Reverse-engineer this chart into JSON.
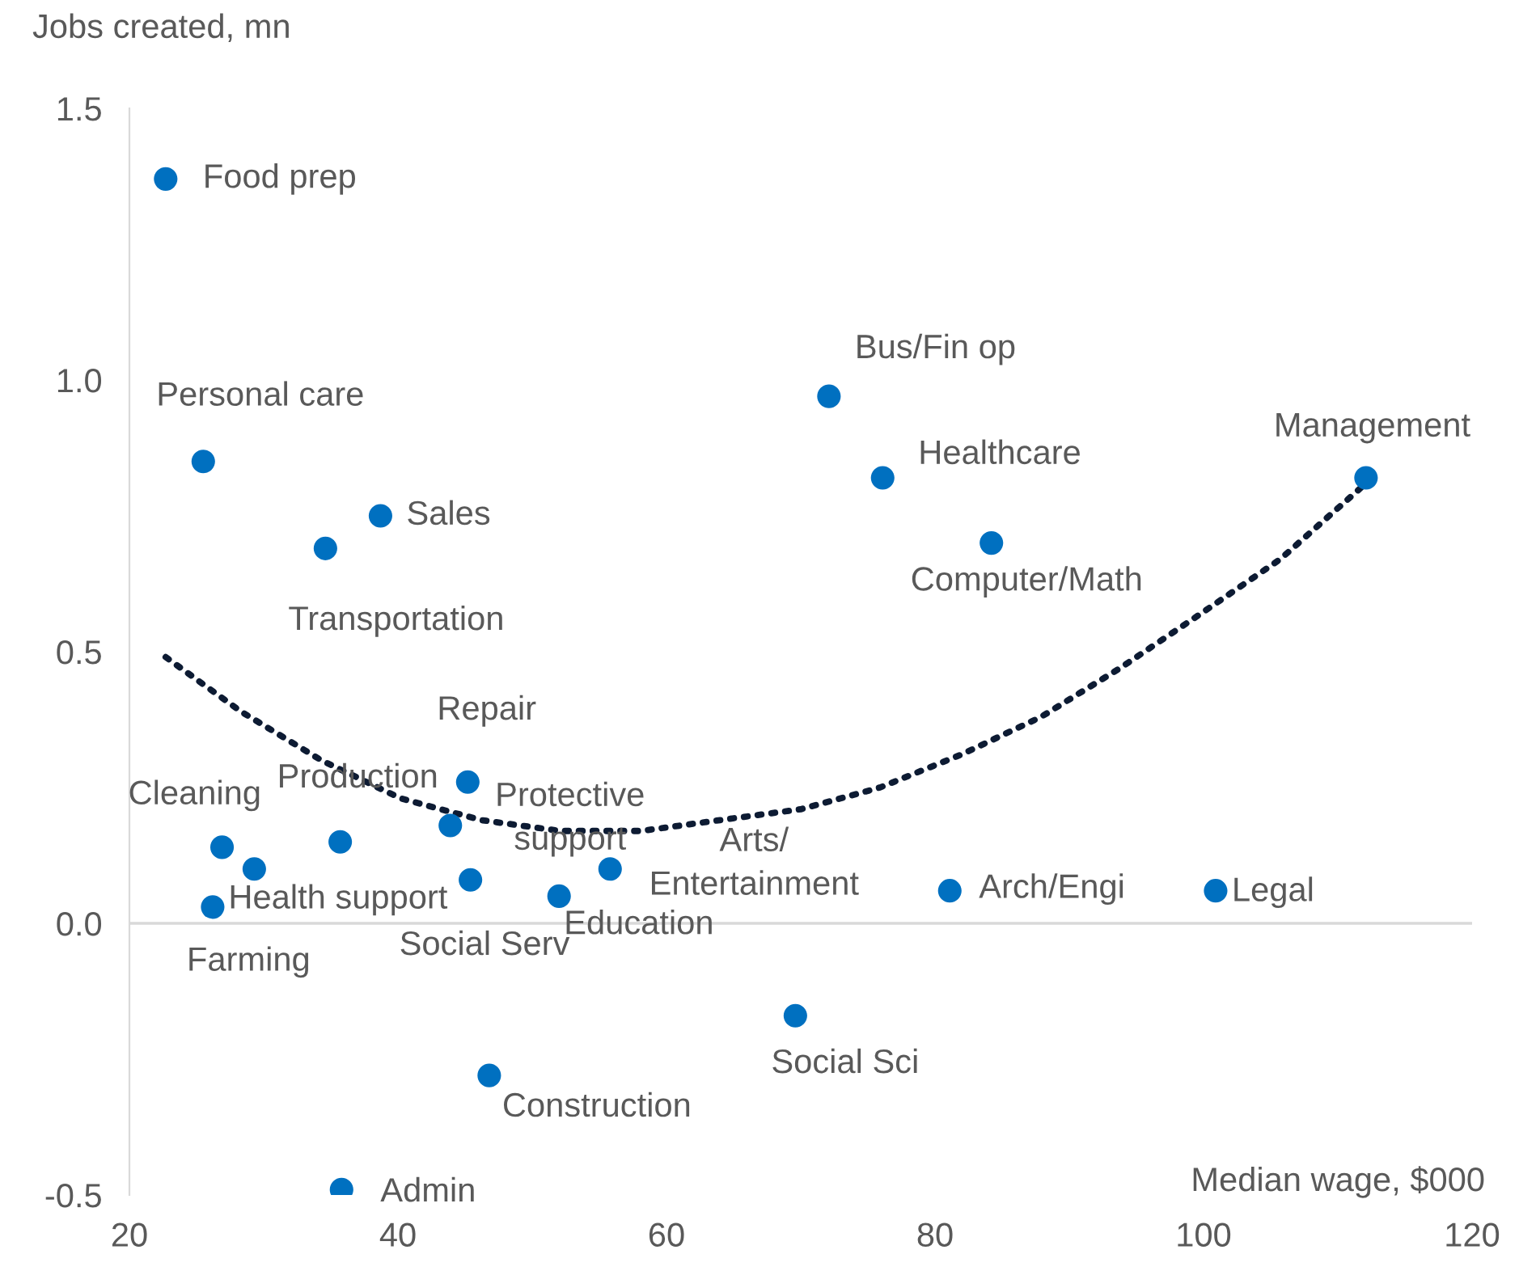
{
  "chart_data": {
    "type": "scatter",
    "xlabel": "Median wage, $000",
    "ylabel": "Jobs created, mn",
    "xlim": [
      20,
      120
    ],
    "xticks": [
      20,
      40,
      60,
      80,
      100,
      120
    ],
    "ylim": [
      -0.5,
      1.5
    ],
    "yticks": [
      -0.5,
      {
        "value": 0,
        "label": "0.0"
      },
      0.5,
      {
        "value": 1,
        "label": "1.0"
      },
      1.5
    ],
    "grid": false,
    "legend": false,
    "ref_lines": [
      {
        "axis": "y",
        "value": 0,
        "color": "#d9d9d9",
        "line_style": "solid"
      }
    ],
    "series": [
      {
        "type": "line",
        "color": "#0d1b33",
        "line_style": "dotted",
        "marker": "none",
        "x": [
          22.7,
          28.3,
          34.3,
          40.2,
          46.2,
          52.1,
          58.1,
          64.0,
          70.0,
          75.9,
          81.9,
          87.9,
          93.8,
          99.8,
          105.7,
          112.1
        ],
        "values": [
          0.49,
          0.39,
          0.3,
          0.23,
          0.19,
          0.17,
          0.17,
          0.19,
          0.21,
          0.25,
          0.31,
          0.38,
          0.47,
          0.57,
          0.67,
          0.81
        ]
      },
      {
        "color": "#0070c0",
        "marker": "circle",
        "x": [
          22.7,
          25.5,
          38.7,
          34.6,
          72.1,
          76.1,
          84.2,
          112.1,
          45.2,
          43.9,
          26.9,
          29.3,
          35.7,
          45.4,
          52.0,
          55.8,
          26.2,
          81.1,
          100.9,
          69.6,
          46.8,
          35.8
        ],
        "values": [
          1.37,
          0.85,
          0.75,
          0.69,
          0.97,
          0.82,
          0.7,
          0.82,
          0.26,
          0.18,
          0.14,
          0.1,
          0.15,
          0.08,
          0.05,
          0.1,
          0.03,
          0.06,
          0.06,
          -0.17,
          -0.28,
          -0.49
        ]
      }
    ],
    "annotations": [
      {
        "text": "Food prep",
        "x": 22.7,
        "y": 1.37
      },
      {
        "text": "Personal care",
        "x": 25.5,
        "y": 0.85
      },
      {
        "text": "Sales",
        "x": 38.7,
        "y": 0.75
      },
      {
        "text": "Transportation",
        "x": 34.6,
        "y": 0.69
      },
      {
        "text": "Bus/Fin op",
        "x": 72.1,
        "y": 0.97
      },
      {
        "text": "Healthcare",
        "x": 76.1,
        "y": 0.82
      },
      {
        "text": "Computer/Math",
        "x": 84.2,
        "y": 0.7
      },
      {
        "text": "Management",
        "x": 112.1,
        "y": 0.82
      },
      {
        "text": "Repair",
        "x": 45.2,
        "y": 0.26
      },
      {
        "text": "Protective\nsupport",
        "x": 43.9,
        "y": 0.18
      },
      {
        "text": "Cleaning",
        "x": 26.9,
        "y": 0.14
      },
      {
        "text": "Health support",
        "x": 29.3,
        "y": 0.1
      },
      {
        "text": "Production",
        "x": 35.7,
        "y": 0.15
      },
      {
        "text": "Social Serv",
        "x": 45.4,
        "y": 0.08
      },
      {
        "text": "Education",
        "x": 52.0,
        "y": 0.05
      },
      {
        "text": "Arts/\nEntertainment",
        "x": 55.8,
        "y": 0.1
      },
      {
        "text": "Farming",
        "x": 26.2,
        "y": 0.03
      },
      {
        "text": "Arch/Engi",
        "x": 81.1,
        "y": 0.06
      },
      {
        "text": "Legal",
        "x": 100.9,
        "y": 0.06
      },
      {
        "text": "Social Sci",
        "x": 69.6,
        "y": -0.17
      },
      {
        "text": "Construction",
        "x": 46.8,
        "y": -0.28
      },
      {
        "text": "Admin",
        "x": 35.8,
        "y": -0.49
      }
    ]
  }
}
